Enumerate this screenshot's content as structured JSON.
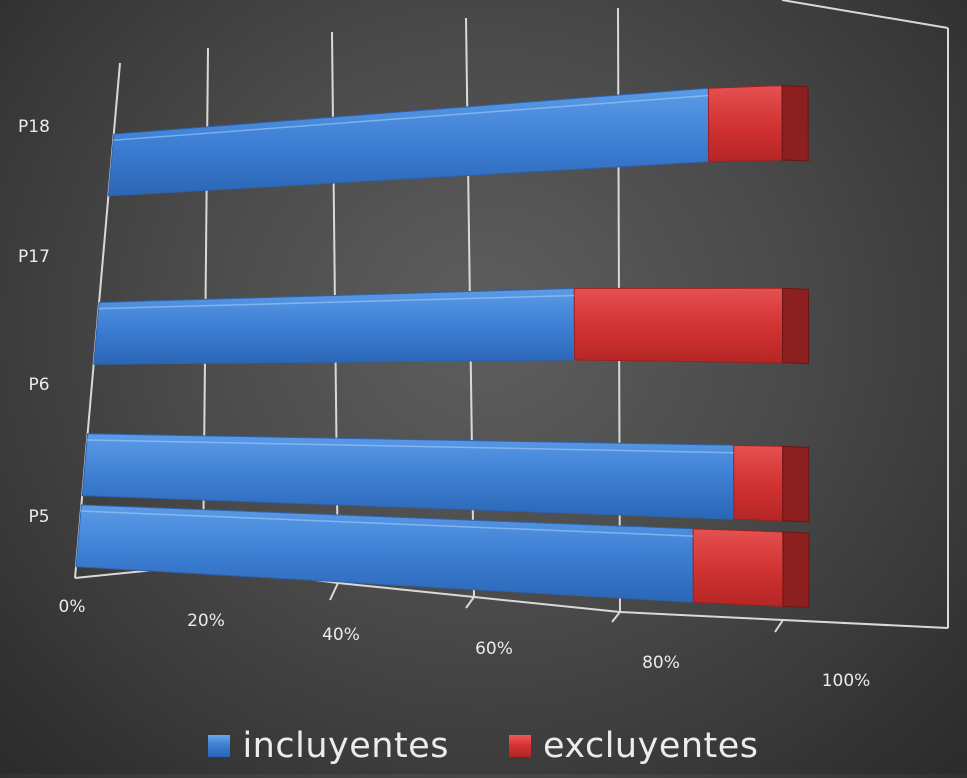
{
  "chart_data": {
    "type": "bar",
    "orientation": "horizontal",
    "stacked": "100%",
    "style": "3d",
    "categories": [
      "P18",
      "P17",
      "P6",
      "P5"
    ],
    "series": [
      {
        "name": "incluyentes",
        "color": "#3d7fd4",
        "values": [
          91,
          74,
          94,
          89
        ]
      },
      {
        "name": "excluyentes",
        "color": "#d63434",
        "values": [
          9,
          26,
          6,
          11
        ]
      }
    ],
    "x_ticks": [
      "0%",
      "20%",
      "40%",
      "60%",
      "80%",
      "100%"
    ],
    "xlim": [
      0,
      100
    ],
    "grid": true,
    "legend_position": "bottom"
  }
}
